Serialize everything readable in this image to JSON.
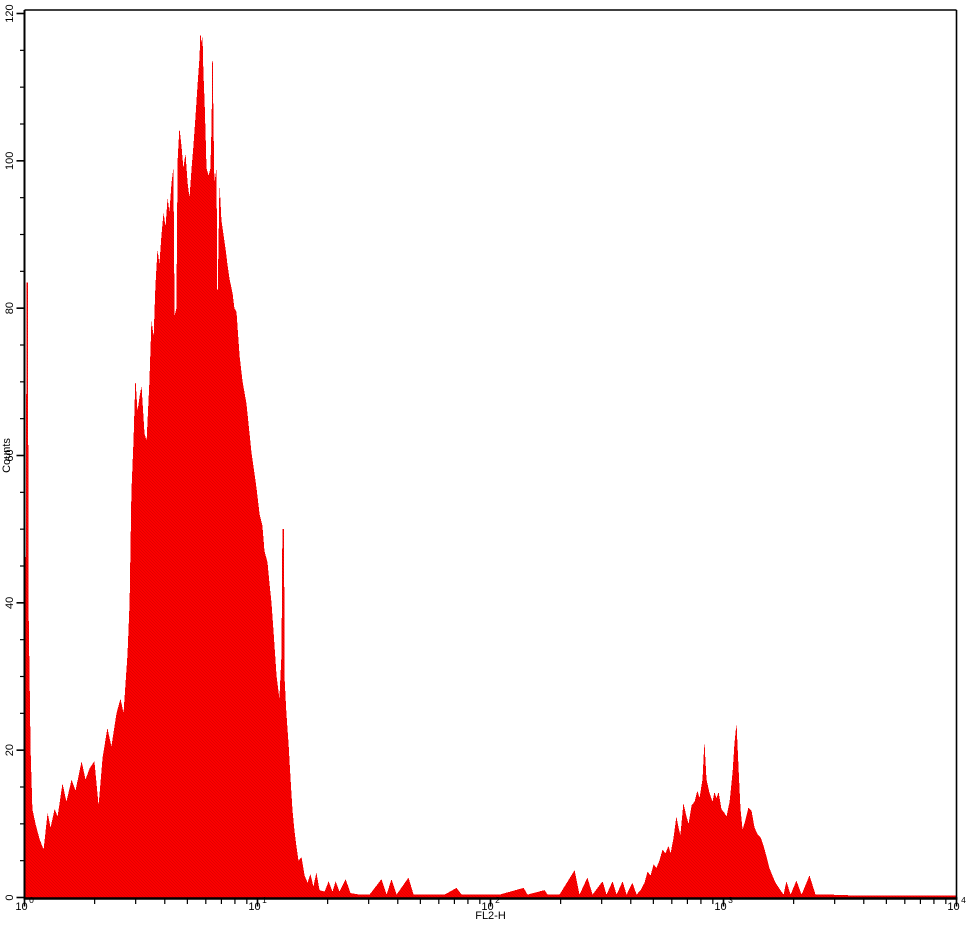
{
  "chart": {
    "x_axis": {
      "title": "FL2-H",
      "scale": "log",
      "tick_base": "10",
      "tick_exponents": [
        0,
        1,
        2,
        3,
        4
      ],
      "minor_multiples": [
        2,
        3,
        4,
        5,
        6,
        7,
        8,
        9
      ]
    },
    "y_axis": {
      "title": "Counts",
      "min": 0,
      "max": 120,
      "major_ticks": [
        0,
        20,
        40,
        60,
        80,
        100,
        120
      ],
      "minor_step": 5
    },
    "colors": {
      "fill": "#FB0000",
      "fill_shade": "#E30000",
      "axis": "#000000",
      "background": "#FFFFFF"
    }
  },
  "chart_data": {
    "type": "area",
    "title": "",
    "xlabel": "FL2-H",
    "ylabel": "Counts",
    "x_scale": "log10",
    "xlim": [
      1,
      10000
    ],
    "ylim": [
      0,
      120
    ],
    "grid": false,
    "legend": false,
    "description": "Flow cytometry single-parameter histogram: large negative population near FL2-H 2-10 (max ~117 counts) and a small positive population near FL2-H ~1000 (max ~24 counts).",
    "peaks": [
      {
        "log10_x": 0.755,
        "x_approx": 5.7,
        "count": 117.5
      },
      {
        "log10_x": 3.056,
        "x_approx": 1140,
        "count": 23.7
      }
    ],
    "series": [
      {
        "name": "events",
        "x_unit": "log10(FL2-H)",
        "points": [
          [
            0.0,
            18
          ],
          [
            0.004,
            30
          ],
          [
            0.009,
            83.5
          ],
          [
            0.015,
            83.5
          ],
          [
            0.017,
            40
          ],
          [
            0.026,
            20
          ],
          [
            0.034,
            12
          ],
          [
            0.047,
            10
          ],
          [
            0.064,
            8
          ],
          [
            0.082,
            6.5
          ],
          [
            0.099,
            11.5
          ],
          [
            0.112,
            9.5
          ],
          [
            0.129,
            12
          ],
          [
            0.142,
            11
          ],
          [
            0.163,
            15.5
          ],
          [
            0.18,
            13
          ],
          [
            0.202,
            16
          ],
          [
            0.219,
            14.5
          ],
          [
            0.245,
            18.5
          ],
          [
            0.262,
            16
          ],
          [
            0.279,
            17.5
          ],
          [
            0.3,
            18.5
          ],
          [
            0.318,
            12.5
          ],
          [
            0.335,
            19
          ],
          [
            0.356,
            23
          ],
          [
            0.373,
            20.5
          ],
          [
            0.395,
            25
          ],
          [
            0.412,
            27
          ],
          [
            0.425,
            25
          ],
          [
            0.442,
            33
          ],
          [
            0.451,
            40
          ],
          [
            0.459,
            55
          ],
          [
            0.468,
            62
          ],
          [
            0.476,
            70.5
          ],
          [
            0.485,
            66
          ],
          [
            0.494,
            68
          ],
          [
            0.502,
            69.5
          ],
          [
            0.515,
            63
          ],
          [
            0.524,
            62
          ],
          [
            0.536,
            70
          ],
          [
            0.545,
            78.5
          ],
          [
            0.554,
            76
          ],
          [
            0.562,
            83
          ],
          [
            0.571,
            88
          ],
          [
            0.579,
            86
          ],
          [
            0.588,
            90
          ],
          [
            0.597,
            93
          ],
          [
            0.605,
            91
          ],
          [
            0.614,
            95
          ],
          [
            0.622,
            93
          ],
          [
            0.631,
            97
          ],
          [
            0.639,
            99
          ],
          [
            0.644,
            79
          ],
          [
            0.652,
            80
          ],
          [
            0.657,
            100
          ],
          [
            0.665,
            104.5
          ],
          [
            0.674,
            102
          ],
          [
            0.682,
            99
          ],
          [
            0.691,
            101
          ],
          [
            0.7,
            97
          ],
          [
            0.708,
            95
          ],
          [
            0.717,
            99
          ],
          [
            0.725,
            102
          ],
          [
            0.734,
            106
          ],
          [
            0.742,
            110
          ],
          [
            0.751,
            114
          ],
          [
            0.755,
            117.5
          ],
          [
            0.76,
            116
          ],
          [
            0.764,
            117
          ],
          [
            0.768,
            112
          ],
          [
            0.773,
            108
          ],
          [
            0.777,
            104
          ],
          [
            0.781,
            99
          ],
          [
            0.79,
            98
          ],
          [
            0.798,
            99
          ],
          [
            0.803,
            105
          ],
          [
            0.807,
            116.5
          ],
          [
            0.811,
            105
          ],
          [
            0.815,
            97
          ],
          [
            0.824,
            99
          ],
          [
            0.828,
            79.5
          ],
          [
            0.837,
            97
          ],
          [
            0.845,
            92
          ],
          [
            0.854,
            90
          ],
          [
            0.863,
            88
          ],
          [
            0.871,
            86
          ],
          [
            0.88,
            84
          ],
          [
            0.893,
            82
          ],
          [
            0.901,
            80
          ],
          [
            0.91,
            79.5
          ],
          [
            0.923,
            73.5
          ],
          [
            0.936,
            70
          ],
          [
            0.953,
            67
          ],
          [
            0.961,
            64.5
          ],
          [
            0.974,
            60.5
          ],
          [
            0.983,
            58.5
          ],
          [
            0.996,
            55.5
          ],
          [
            1.009,
            52
          ],
          [
            1.021,
            50.5
          ],
          [
            1.03,
            47
          ],
          [
            1.043,
            45.5
          ],
          [
            1.052,
            42.5
          ],
          [
            1.06,
            40
          ],
          [
            1.069,
            36
          ],
          [
            1.082,
            30
          ],
          [
            1.094,
            27
          ],
          [
            1.103,
            33
          ],
          [
            1.107,
            50
          ],
          [
            1.114,
            50
          ],
          [
            1.116,
            30
          ],
          [
            1.124,
            25
          ],
          [
            1.133,
            21
          ],
          [
            1.142,
            16
          ],
          [
            1.15,
            12
          ],
          [
            1.159,
            9
          ],
          [
            1.167,
            7
          ],
          [
            1.176,
            5
          ],
          [
            1.189,
            5.5
          ],
          [
            1.202,
            3
          ],
          [
            1.215,
            2
          ],
          [
            1.227,
            3.2
          ],
          [
            1.24,
            1.5
          ],
          [
            1.253,
            3.4
          ],
          [
            1.266,
            1
          ],
          [
            1.288,
            0.8
          ],
          [
            1.305,
            2.2
          ],
          [
            1.322,
            0.8
          ],
          [
            1.335,
            2.2
          ],
          [
            1.352,
            0.8
          ],
          [
            1.378,
            2.5
          ],
          [
            1.399,
            0.6
          ],
          [
            1.438,
            0.4
          ],
          [
            1.481,
            0.4
          ],
          [
            1.532,
            2.5
          ],
          [
            1.554,
            0.4
          ],
          [
            1.575,
            2.5
          ],
          [
            1.597,
            0.4
          ],
          [
            1.648,
            2.7
          ],
          [
            1.67,
            0.4
          ],
          [
            1.738,
            0.4
          ],
          [
            1.803,
            0.4
          ],
          [
            1.854,
            1.3
          ],
          [
            1.876,
            0.4
          ],
          [
            1.953,
            0.4
          ],
          [
            2.039,
            0.4
          ],
          [
            2.142,
            1.3
          ],
          [
            2.159,
            0.4
          ],
          [
            2.232,
            1.0
          ],
          [
            2.245,
            0.4
          ],
          [
            2.296,
            0.4
          ],
          [
            2.361,
            3.7
          ],
          [
            2.382,
            0.4
          ],
          [
            2.416,
            2.7
          ],
          [
            2.438,
            0.4
          ],
          [
            2.481,
            2.2
          ],
          [
            2.498,
            0.4
          ],
          [
            2.524,
            2.2
          ],
          [
            2.541,
            0.4
          ],
          [
            2.567,
            2.2
          ],
          [
            2.584,
            0.4
          ],
          [
            2.609,
            2.0
          ],
          [
            2.627,
            0.4
          ],
          [
            2.644,
            1
          ],
          [
            2.661,
            2
          ],
          [
            2.674,
            3.5
          ],
          [
            2.687,
            3
          ],
          [
            2.7,
            4.5
          ],
          [
            2.712,
            4
          ],
          [
            2.725,
            5
          ],
          [
            2.738,
            6.5
          ],
          [
            2.751,
            6
          ],
          [
            2.764,
            7
          ],
          [
            2.773,
            6
          ],
          [
            2.785,
            8
          ],
          [
            2.798,
            11
          ],
          [
            2.807,
            9.5
          ],
          [
            2.815,
            8.5
          ],
          [
            2.828,
            12.8
          ],
          [
            2.841,
            11
          ],
          [
            2.85,
            10
          ],
          [
            2.863,
            12.5
          ],
          [
            2.876,
            13
          ],
          [
            2.888,
            14.5
          ],
          [
            2.897,
            13.5
          ],
          [
            2.91,
            16
          ],
          [
            2.918,
            21.2
          ],
          [
            2.927,
            16
          ],
          [
            2.94,
            14.2
          ],
          [
            2.953,
            13
          ],
          [
            2.961,
            14.3
          ],
          [
            2.97,
            13.5
          ],
          [
            2.979,
            14.3
          ],
          [
            2.991,
            12
          ],
          [
            3.004,
            11.5
          ],
          [
            3.013,
            11
          ],
          [
            3.026,
            13
          ],
          [
            3.039,
            17
          ],
          [
            3.047,
            21
          ],
          [
            3.056,
            23.7
          ],
          [
            3.064,
            18
          ],
          [
            3.073,
            12
          ],
          [
            3.082,
            9.2
          ],
          [
            3.094,
            10.5
          ],
          [
            3.107,
            12.2
          ],
          [
            3.12,
            11.8
          ],
          [
            3.133,
            9.5
          ],
          [
            3.146,
            8.6
          ],
          [
            3.159,
            8.2
          ],
          [
            3.172,
            7
          ],
          [
            3.185,
            5.5
          ],
          [
            3.197,
            4
          ],
          [
            3.21,
            3
          ],
          [
            3.223,
            2
          ],
          [
            3.24,
            1.2
          ],
          [
            3.258,
            0.4
          ],
          [
            3.27,
            2.2
          ],
          [
            3.288,
            0.4
          ],
          [
            3.313,
            2.3
          ],
          [
            3.335,
            0.4
          ],
          [
            3.369,
            3.0
          ],
          [
            3.395,
            0.4
          ],
          [
            3.455,
            0.4
          ],
          [
            3.541,
            0.3
          ],
          [
            3.67,
            0.3
          ],
          [
            3.841,
            0.3
          ],
          [
            3.996,
            0.3
          ]
        ]
      }
    ]
  }
}
